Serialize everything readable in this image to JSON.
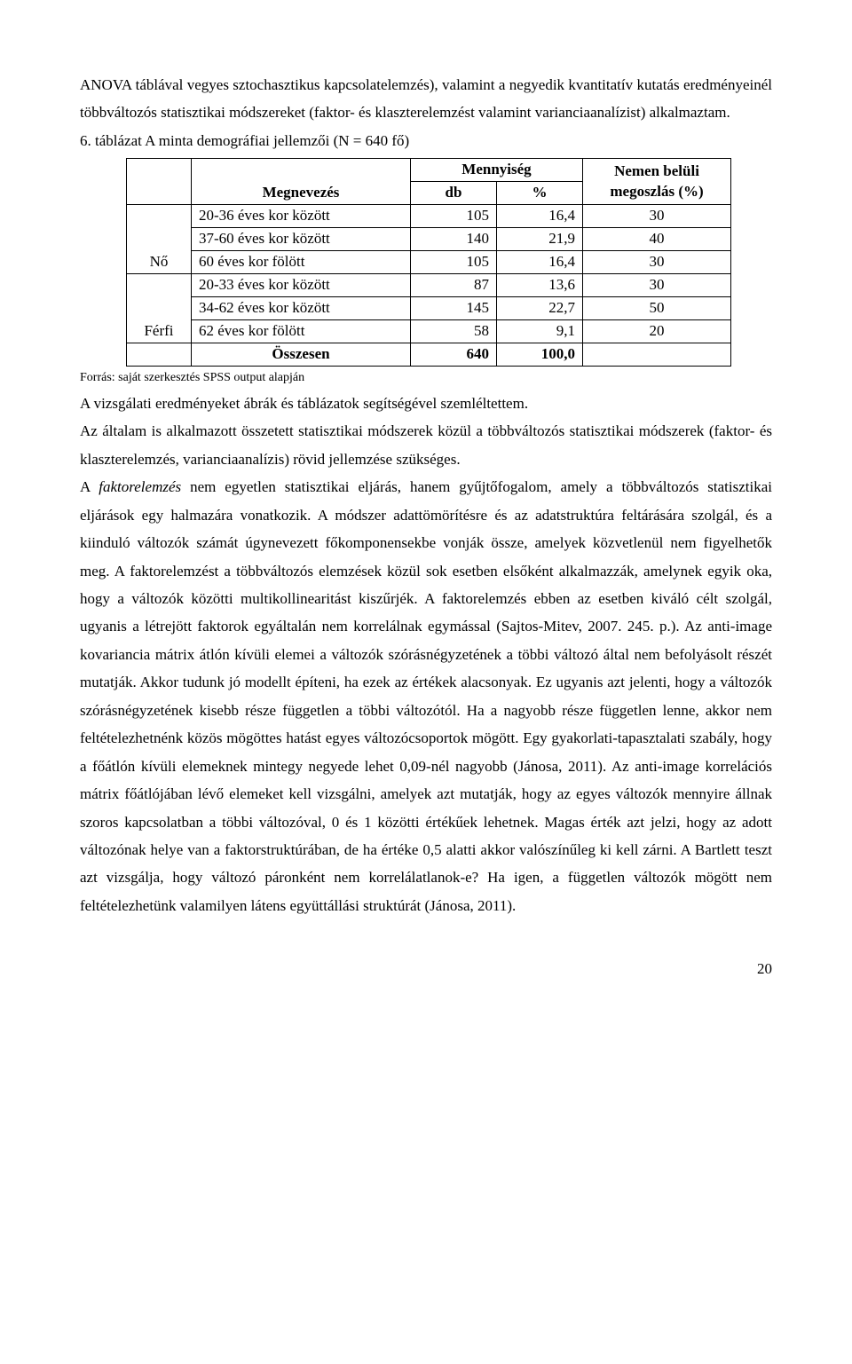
{
  "intro": {
    "p1": "ANOVA táblával vegyes sztochasztikus kapcsolatelemzés), valamint a negyedik kvantitatív kutatás eredményeinél többváltozós statisztikai módszereket (faktor- és klaszterelemzést valamint varianciaanalízist) alkalmaztam."
  },
  "table": {
    "title": "6. táblázat A minta demográfiai jellemzői (N = 640 fő)",
    "hdr_megnevezes": "Megnevezés",
    "hdr_mennyiseg": "Mennyiség",
    "hdr_db": "db",
    "hdr_pct": "%",
    "hdr_nemen": "Nemen belüli megoszlás (%)",
    "group_no": "Nő",
    "group_ferfi": "Férfi",
    "rows": [
      {
        "name": "20-36 éves kor között",
        "db": "105",
        "pct": "16,4",
        "share": "30"
      },
      {
        "name": "37-60 éves kor között",
        "db": "140",
        "pct": "21,9",
        "share": "40"
      },
      {
        "name": "60 éves kor fölött",
        "db": "105",
        "pct": "16,4",
        "share": "30"
      },
      {
        "name": "20-33 éves kor között",
        "db": "87",
        "pct": "13,6",
        "share": "30"
      },
      {
        "name": "34-62 éves kor között",
        "db": "145",
        "pct": "22,7",
        "share": "50"
      },
      {
        "name": "62 éves kor fölött",
        "db": "58",
        "pct": "9,1",
        "share": "20"
      }
    ],
    "total_label": "Összesen",
    "total_db": "640",
    "total_pct": "100,0",
    "source": "Forrás: saját szerkesztés SPSS output alapján"
  },
  "body": {
    "p2": "A vizsgálati eredményeket ábrák és táblázatok segítségével szemléltettem.",
    "p3": "Az általam is alkalmazott összetett statisztikai módszerek közül a többváltozós statisztikai módszerek (faktor- és klaszterelemzés, varianciaanalízis) rövid jellemzése szükséges.",
    "p4_prefix": "A ",
    "p4_em": "faktorelemzés",
    "p4_rest": " nem egyetlen statisztikai eljárás, hanem gyűjtőfogalom, amely a többváltozós statisztikai eljárások egy halmazára vonatkozik. A módszer adattömörítésre és az adatstruktúra feltárására szolgál, és a kiinduló változók számát úgynevezett főkomponensekbe vonják össze, amelyek közvetlenül nem figyelhetők meg. A faktorelemzést a többváltozós elemzések közül sok esetben elsőként alkalmazzák, amelynek egyik oka, hogy a változók közötti multikollinearitást kiszűrjék. A faktorelemzés ebben az esetben kiváló célt szolgál, ugyanis a létrejött faktorok egyáltalán nem korrelálnak egymással (Sajtos-Mitev, 2007. 245. p.). Az anti-image kovariancia mátrix átlón kívüli elemei a változók szórásnégyzetének a többi változó által nem befolyásolt részét mutatják. Akkor tudunk jó modellt építeni, ha ezek az értékek alacsonyak. Ez ugyanis azt jelenti, hogy a változók szórásnégyzetének kisebb része független a többi változótól. Ha a nagyobb része független lenne, akkor nem feltételezhetnénk közös mögöttes hatást egyes változócsoportok mögött. Egy gyakorlati-tapasztalati szabály, hogy a főátlón kívüli elemeknek mintegy negyede lehet 0,09-nél nagyobb (Jánosa, 2011). Az anti-image korrelációs mátrix főátlójában lévő elemeket kell vizsgálni, amelyek azt mutatják, hogy az egyes változók mennyire állnak szoros kapcsolatban a többi változóval, 0 és 1 közötti értékűek lehetnek. Magas érték azt jelzi, hogy az adott változónak helye van a faktorstruktúrában, de ha értéke 0,5 alatti akkor valószínűleg ki kell zárni. A Bartlett teszt azt vizsgálja, hogy változó páronként nem korrelálatlanok-e? Ha igen, a független változók mögött nem feltételezhetünk valamilyen látens együttállási struktúrát (Jánosa, 2011)."
  },
  "page_number": "20"
}
